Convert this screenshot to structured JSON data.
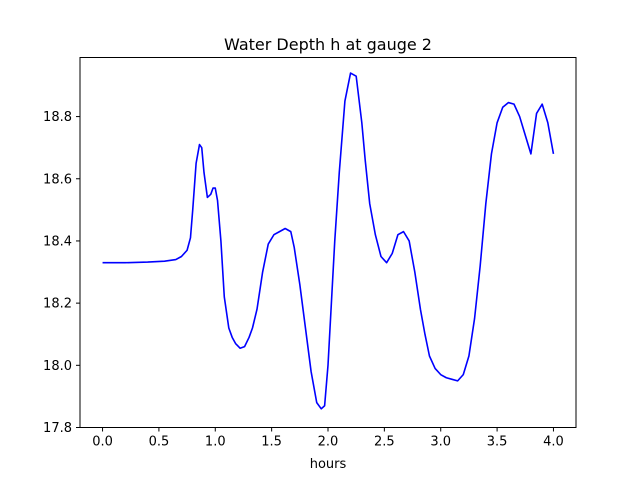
{
  "chart_data": {
    "type": "line",
    "title": "Water Depth h at gauge 2",
    "xlabel": "hours",
    "ylabel": "",
    "xlim": [
      -0.2,
      4.2
    ],
    "ylim": [
      17.8,
      18.99
    ],
    "xticks": [
      0.0,
      0.5,
      1.0,
      1.5,
      2.0,
      2.5,
      3.0,
      3.5,
      4.0
    ],
    "xtick_labels": [
      "0.0",
      "0.5",
      "1.0",
      "1.5",
      "2.0",
      "2.5",
      "3.0",
      "3.5",
      "4.0"
    ],
    "yticks": [
      17.8,
      18.0,
      18.2,
      18.4,
      18.6,
      18.8
    ],
    "ytick_labels": [
      "17.8",
      "18.0",
      "18.2",
      "18.4",
      "18.6",
      "18.8"
    ],
    "grid": false,
    "series": [
      {
        "color": "#0000ff",
        "x": [
          0.0,
          0.2,
          0.4,
          0.55,
          0.65,
          0.7,
          0.75,
          0.78,
          0.8,
          0.83,
          0.86,
          0.88,
          0.9,
          0.93,
          0.96,
          0.98,
          1.0,
          1.02,
          1.05,
          1.08,
          1.12,
          1.15,
          1.18,
          1.22,
          1.26,
          1.3,
          1.33,
          1.37,
          1.42,
          1.47,
          1.52,
          1.57,
          1.62,
          1.67,
          1.7,
          1.75,
          1.8,
          1.85,
          1.9,
          1.94,
          1.97,
          2.0,
          2.03,
          2.06,
          2.1,
          2.15,
          2.2,
          2.25,
          2.3,
          2.33,
          2.37,
          2.42,
          2.47,
          2.52,
          2.57,
          2.62,
          2.67,
          2.72,
          2.77,
          2.82,
          2.86,
          2.9,
          2.95,
          3.0,
          3.05,
          3.1,
          3.15,
          3.2,
          3.25,
          3.3,
          3.35,
          3.4,
          3.45,
          3.5,
          3.55,
          3.6,
          3.65,
          3.7,
          3.75,
          3.8,
          3.85,
          3.9,
          3.95,
          4.0
        ],
        "y": [
          18.33,
          18.33,
          18.332,
          18.335,
          18.34,
          18.35,
          18.37,
          18.41,
          18.5,
          18.65,
          18.71,
          18.7,
          18.62,
          18.54,
          18.55,
          18.57,
          18.57,
          18.53,
          18.4,
          18.22,
          18.12,
          18.09,
          18.07,
          18.055,
          18.06,
          18.09,
          18.12,
          18.18,
          18.3,
          18.39,
          18.42,
          18.43,
          18.44,
          18.43,
          18.38,
          18.26,
          18.12,
          17.98,
          17.88,
          17.86,
          17.87,
          18.0,
          18.2,
          18.4,
          18.62,
          18.85,
          18.94,
          18.93,
          18.78,
          18.66,
          18.52,
          18.42,
          18.35,
          18.33,
          18.36,
          18.42,
          18.43,
          18.4,
          18.3,
          18.18,
          18.1,
          18.03,
          17.99,
          17.97,
          17.96,
          17.955,
          17.95,
          17.97,
          18.03,
          18.15,
          18.32,
          18.52,
          18.68,
          18.78,
          18.83,
          18.845,
          18.84,
          18.8,
          18.74,
          18.68,
          18.81,
          18.84,
          18.78,
          18.68
        ]
      }
    ]
  }
}
